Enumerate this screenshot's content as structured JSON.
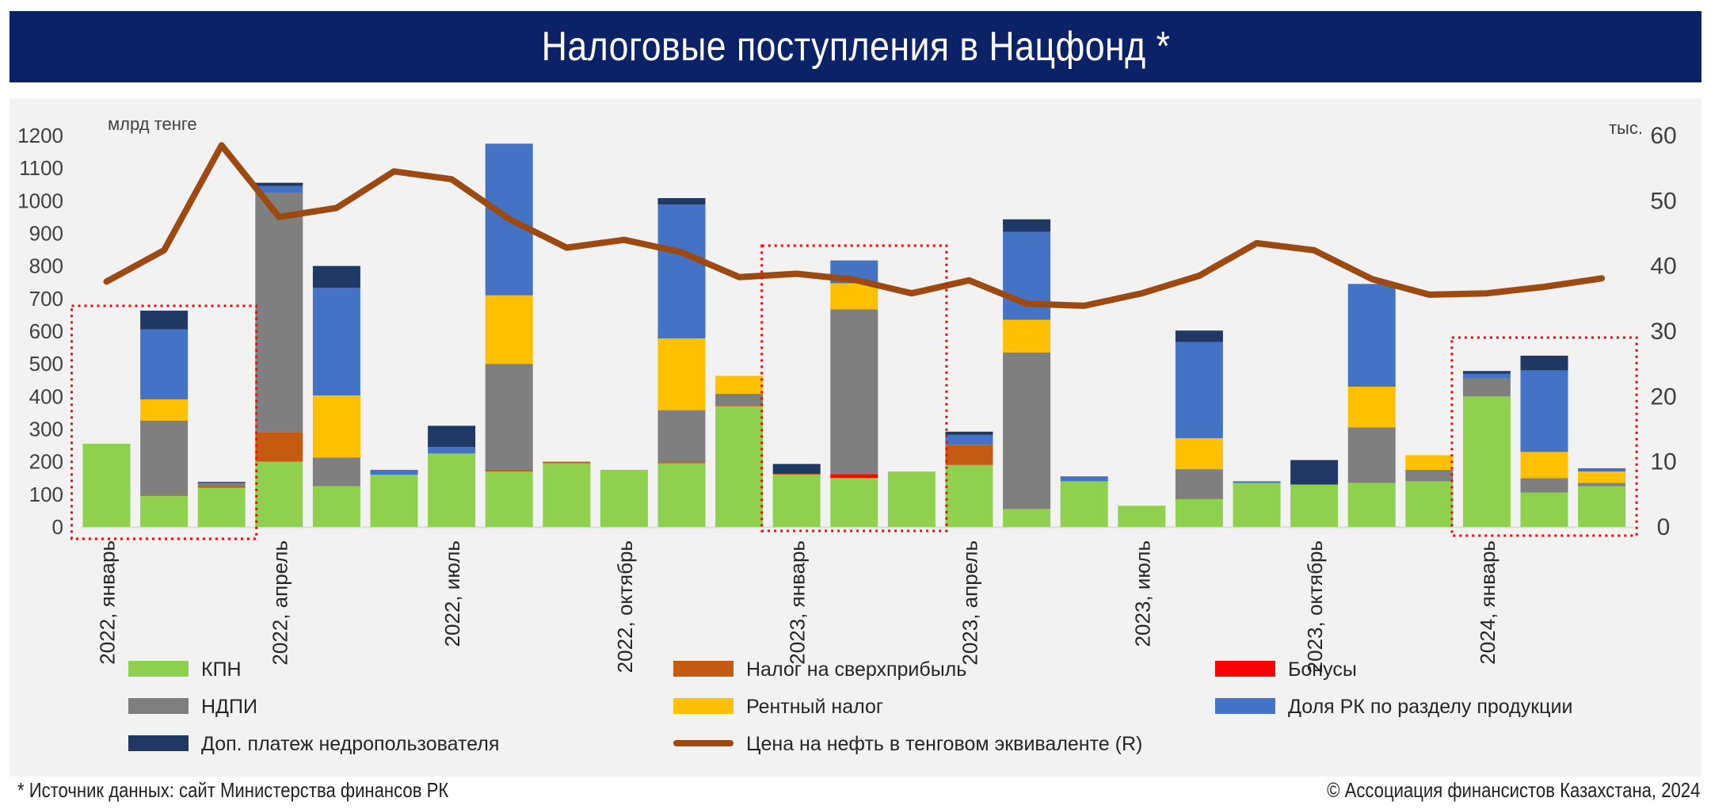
{
  "title": "Налоговые поступления в Нацфонд *",
  "source_note": "* Источник данных: сайт Министерства финансов РК",
  "copyright": "© Ассоциация финансистов Казахстана, 2024",
  "colors": {
    "kpn": "#8fd14f",
    "super": "#c55a11",
    "bonus": "#ff0000",
    "ndpi": "#7f7f7f",
    "rent": "#ffc000",
    "share": "#4472c4",
    "dop": "#1f3864",
    "oil": "#9c4a12",
    "highlight": "#ff0000"
  },
  "chart_data": {
    "type": "bar",
    "stacked": true,
    "left_axis_label": "млрд тенге",
    "right_axis_label": "тыс.",
    "ylim": [
      0,
      1200
    ],
    "y_ticks": [
      "0",
      "100",
      "200",
      "300",
      "400",
      "500",
      "600",
      "700",
      "800",
      "900",
      "1000",
      "1100",
      "1200"
    ],
    "y2lim": [
      0,
      60
    ],
    "y2_ticks": [
      "0",
      "10",
      "20",
      "30",
      "40",
      "50",
      "60"
    ],
    "x_tick_labels": [
      {
        "index": 0,
        "label": "2022, январь"
      },
      {
        "index": 3,
        "label": "2022, апрель"
      },
      {
        "index": 6,
        "label": "2022, июль"
      },
      {
        "index": 9,
        "label": "2022, октябрь"
      },
      {
        "index": 12,
        "label": "2023, январь"
      },
      {
        "index": 15,
        "label": "2023, апрель"
      },
      {
        "index": 18,
        "label": "2023, июль"
      },
      {
        "index": 21,
        "label": "2023, октябрь"
      },
      {
        "index": 24,
        "label": "2024, январь"
      }
    ],
    "months": 27,
    "series": [
      {
        "name": "КПН",
        "key": "kpn",
        "values": [
          255,
          95,
          120,
          200,
          125,
          160,
          225,
          170,
          195,
          175,
          195,
          370,
          160,
          150,
          170,
          190,
          55,
          140,
          65,
          85,
          135,
          130,
          135,
          140,
          400,
          105,
          125
        ]
      },
      {
        "name": "Налог на сверхприбыль",
        "key": "super",
        "values": [
          0,
          3,
          5,
          90,
          0,
          0,
          0,
          5,
          5,
          0,
          3,
          3,
          3,
          0,
          0,
          62,
          0,
          0,
          0,
          2,
          0,
          0,
          0,
          0,
          0,
          0,
          0
        ]
      },
      {
        "name": "Бонусы",
        "key": "bonus",
        "values": [
          0,
          0,
          0,
          0,
          0,
          0,
          0,
          0,
          0,
          0,
          0,
          0,
          0,
          12,
          0,
          0,
          0,
          0,
          0,
          0,
          0,
          0,
          0,
          0,
          0,
          0,
          0
        ]
      },
      {
        "name": "НДПИ",
        "key": "ndpi",
        "values": [
          0,
          228,
          10,
          735,
          88,
          0,
          0,
          325,
          0,
          0,
          160,
          35,
          0,
          505,
          0,
          0,
          480,
          0,
          0,
          90,
          0,
          0,
          170,
          35,
          55,
          45,
          10
        ]
      },
      {
        "name": "Рентный налог",
        "key": "rent",
        "values": [
          0,
          65,
          0,
          0,
          190,
          0,
          0,
          210,
          0,
          0,
          220,
          55,
          0,
          80,
          0,
          0,
          100,
          0,
          0,
          95,
          0,
          0,
          125,
          45,
          0,
          80,
          35
        ]
      },
      {
        "name": "Доля РК по разделу продукции",
        "key": "share",
        "values": [
          0,
          215,
          0,
          20,
          330,
          15,
          20,
          465,
          0,
          0,
          410,
          0,
          0,
          70,
          0,
          30,
          270,
          15,
          0,
          295,
          5,
          0,
          315,
          0,
          15,
          250,
          10
        ]
      },
      {
        "name": "Доп. платеж недропользователя",
        "key": "dop",
        "values": [
          0,
          57,
          3,
          10,
          67,
          0,
          65,
          0,
          0,
          0,
          20,
          0,
          30,
          0,
          0,
          10,
          38,
          0,
          0,
          35,
          0,
          75,
          0,
          0,
          8,
          45,
          0
        ]
      }
    ],
    "line_series": {
      "name": "Цена на нефть в тенговом эквиваленте (R)",
      "axis": "right",
      "values": [
        37.6,
        42.4,
        58.5,
        47.5,
        48.9,
        54.5,
        53.3,
        47.2,
        42.8,
        44.0,
        42.1,
        38.3,
        38.8,
        37.9,
        35.8,
        37.8,
        34.2,
        33.9,
        35.8,
        38.5,
        43.5,
        42.4,
        38.0,
        35.6,
        35.8,
        36.8,
        38.1
      ]
    },
    "highlight_groups": [
      [
        0,
        2
      ],
      [
        12,
        14
      ],
      [
        24,
        26
      ]
    ],
    "legend": [
      {
        "label": "КПН",
        "key": "kpn",
        "kind": "bar"
      },
      {
        "label": "Налог на сверхприбыль",
        "key": "super",
        "kind": "bar"
      },
      {
        "label": "Бонусы",
        "key": "bonus",
        "kind": "bar"
      },
      {
        "label": "НДПИ",
        "key": "ndpi",
        "kind": "bar"
      },
      {
        "label": "Рентный налог",
        "key": "rent",
        "kind": "bar"
      },
      {
        "label": "Доля РК по разделу продукции",
        "key": "share",
        "kind": "bar"
      },
      {
        "label": "Доп. платеж недропользователя",
        "key": "dop",
        "kind": "bar"
      },
      {
        "label": "Цена на нефть в тенговом эквиваленте (R)",
        "key": "oil",
        "kind": "line"
      }
    ]
  }
}
